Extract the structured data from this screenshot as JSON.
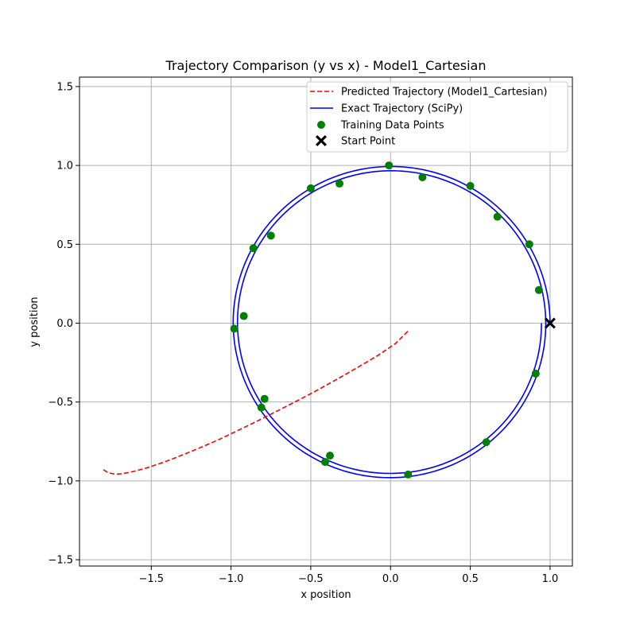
{
  "chart_data": {
    "type": "line",
    "title": "Trajectory Comparison (y vs x) - Model1_Cartesian",
    "xlabel": "x position",
    "ylabel": "y position",
    "xlim": [
      -1.95,
      1.14
    ],
    "ylim": [
      -1.54,
      1.56
    ],
    "xticks": [
      -1.5,
      -1.0,
      -0.5,
      0.0,
      0.5,
      1.0
    ],
    "xtick_labels": [
      "−1.5",
      "−1.0",
      "−0.5",
      "0.0",
      "0.5",
      "1.0"
    ],
    "yticks": [
      -1.5,
      -1.0,
      -0.5,
      0.0,
      0.5,
      1.0,
      1.5
    ],
    "ytick_labels": [
      "−1.5",
      "−1.0",
      "−0.5",
      "0.0",
      "0.5",
      "1.0",
      "1.5"
    ],
    "grid": true,
    "legend_position": "top-right",
    "series": [
      {
        "name": "Predicted Trajectory (Model1_Cartesian)",
        "kind": "line",
        "style": "dashed",
        "color": "#ff0000",
        "x": [
          -1.8,
          -1.77,
          -1.74,
          -1.71,
          -1.68,
          -1.64,
          -1.59,
          -1.53,
          -1.46,
          -1.38,
          -1.29,
          -1.19,
          -1.08,
          -0.97,
          -0.85,
          -0.73,
          -0.6,
          -0.47,
          -0.34,
          -0.21,
          -0.08,
          0.03,
          0.11
        ],
        "y": [
          -0.93,
          -0.948,
          -0.955,
          -0.957,
          -0.954,
          -0.947,
          -0.935,
          -0.918,
          -0.895,
          -0.866,
          -0.83,
          -0.788,
          -0.74,
          -0.687,
          -0.628,
          -0.567,
          -0.5,
          -0.431,
          -0.358,
          -0.283,
          -0.205,
          -0.13,
          -0.05
        ]
      },
      {
        "name": "Exact Trajectory (SciPy)",
        "kind": "spiral",
        "color": "#0000ff",
        "r_start": 1.0,
        "r_end": 0.946,
        "turns": 2
      },
      {
        "name": "Training Data Points",
        "kind": "scatter",
        "color": "#008000",
        "x": [
          -0.01,
          0.2,
          0.5,
          0.67,
          0.87,
          0.93,
          0.91,
          0.6,
          0.11,
          -0.38,
          -0.41,
          -0.79,
          -0.81,
          -0.98,
          -0.92,
          -0.86,
          -0.75,
          -0.5,
          -0.32
        ],
        "y": [
          1.0,
          0.925,
          0.87,
          0.675,
          0.5,
          0.21,
          -0.32,
          -0.755,
          -0.96,
          -0.84,
          -0.88,
          -0.48,
          -0.535,
          -0.035,
          0.045,
          0.475,
          0.555,
          0.855,
          0.885
        ]
      },
      {
        "name": "Start Point",
        "kind": "marker",
        "marker": "X",
        "color": "#000000",
        "x": [
          1.0
        ],
        "y": [
          0.0
        ]
      }
    ]
  }
}
